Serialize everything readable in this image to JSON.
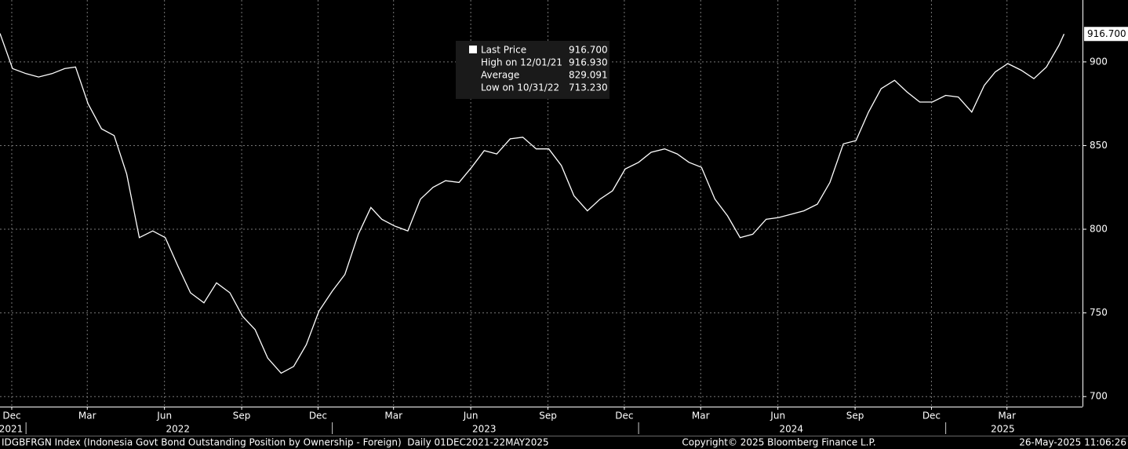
{
  "chart_data": {
    "type": "line",
    "series": [
      {
        "name": "Last Price",
        "color": "#ffffff",
        "x": [
          "2021-12-01",
          "2021-12-16",
          "2022-01-01",
          "2022-01-16",
          "2022-02-01",
          "2022-02-16",
          "2022-03-01",
          "2022-03-16",
          "2022-04-01",
          "2022-04-16",
          "2022-05-01",
          "2022-05-16",
          "2022-06-01",
          "2022-06-16",
          "2022-07-01",
          "2022-07-16",
          "2022-08-01",
          "2022-08-16",
          "2022-09-01",
          "2022-09-16",
          "2022-10-01",
          "2022-10-16",
          "2022-11-01",
          "2022-11-16",
          "2022-12-01",
          "2022-12-16",
          "2023-01-01",
          "2023-01-16",
          "2023-02-01",
          "2023-02-16",
          "2023-03-01",
          "2023-03-16",
          "2023-04-01",
          "2023-04-16",
          "2023-05-01",
          "2023-05-16",
          "2023-06-01",
          "2023-06-16",
          "2023-07-01",
          "2023-07-16",
          "2023-08-01",
          "2023-08-16",
          "2023-09-01",
          "2023-09-16",
          "2023-10-01",
          "2023-10-16",
          "2023-11-01",
          "2023-11-16",
          "2023-12-01",
          "2023-12-16",
          "2024-01-01",
          "2024-01-16",
          "2024-02-01",
          "2024-02-16",
          "2024-03-01",
          "2024-03-16",
          "2024-04-01",
          "2024-04-16",
          "2024-05-01",
          "2024-05-16",
          "2024-06-01",
          "2024-06-16",
          "2024-07-01",
          "2024-07-16",
          "2024-08-01",
          "2024-08-16",
          "2024-09-01",
          "2024-09-16",
          "2024-10-01",
          "2024-10-16",
          "2024-11-01",
          "2024-11-16",
          "2024-12-01",
          "2024-12-16",
          "2025-01-01",
          "2025-01-16",
          "2025-02-01",
          "2025-02-16",
          "2025-03-01",
          "2025-03-16",
          "2025-04-01",
          "2025-04-16",
          "2025-05-01",
          "2025-05-16",
          "2025-05-22"
        ],
        "values": [
          917,
          896,
          893,
          891,
          893,
          896,
          897,
          875,
          860,
          856,
          833,
          795,
          799,
          795,
          778,
          762,
          756,
          768,
          762,
          748,
          740,
          723,
          714,
          718,
          731,
          751,
          763,
          773,
          797,
          813,
          806,
          802,
          799,
          818,
          825,
          829,
          828,
          837,
          847,
          845,
          854,
          855,
          848,
          848,
          838,
          820,
          811,
          818,
          823,
          836,
          840,
          846,
          848,
          845,
          840,
          837,
          818,
          808,
          795,
          797,
          806,
          807,
          809,
          811,
          815,
          828,
          851,
          853,
          870,
          884,
          889,
          882,
          876,
          876,
          880,
          879,
          870,
          886,
          894,
          899,
          895,
          890,
          897,
          910,
          916.7
        ],
        "last_label": "916.700"
      }
    ],
    "legend": [
      {
        "label": "Last Price",
        "value": "916.700"
      },
      {
        "label": "High on 12/01/21",
        "value": "916.930"
      },
      {
        "label": "Average",
        "value": "829.091"
      },
      {
        "label": "Low on 10/31/22",
        "value": "713.230"
      }
    ],
    "xlim": [
      "2021-12-01",
      "2025-06-13"
    ],
    "xticks": [
      {
        "value": "2021-12-15",
        "label": "Dec"
      },
      {
        "value": "2022-03-15",
        "label": "Mar"
      },
      {
        "value": "2022-06-15",
        "label": "Jun"
      },
      {
        "value": "2022-09-15",
        "label": "Sep"
      },
      {
        "value": "2022-12-15",
        "label": "Dec"
      },
      {
        "value": "2023-03-15",
        "label": "Mar"
      },
      {
        "value": "2023-06-15",
        "label": "Jun"
      },
      {
        "value": "2023-09-15",
        "label": "Sep"
      },
      {
        "value": "2023-12-15",
        "label": "Dec"
      },
      {
        "value": "2024-03-15",
        "label": "Mar"
      },
      {
        "value": "2024-06-15",
        "label": "Jun"
      },
      {
        "value": "2024-09-15",
        "label": "Sep"
      },
      {
        "value": "2024-12-15",
        "label": "Dec"
      },
      {
        "value": "2025-03-15",
        "label": "Mar"
      }
    ],
    "year_ticks": [
      {
        "value": "2021-12-10",
        "label": "2021"
      },
      {
        "value": "2022-07-01",
        "label": "2022"
      },
      {
        "value": "2023-07-01",
        "label": "2023"
      },
      {
        "value": "2024-07-01",
        "label": "2024"
      },
      {
        "value": "2025-03-10",
        "label": "2025"
      }
    ],
    "year_breaks": [
      "2022-01-01",
      "2023-01-01",
      "2024-01-01",
      "2025-01-01"
    ],
    "ylim": [
      694,
      937
    ],
    "yticks": [
      700,
      750,
      800,
      850,
      900
    ],
    "grid": true,
    "footer": {
      "left": "IDGBFRGN Index (Indonesia Govt Bond Outstanding Position by Ownership - Foreign)  Daily 01DEC2021-22MAY2025",
      "center": "Copyright© 2025 Bloomberg Finance L.P.",
      "right": "26-May-2025 11:06:26"
    }
  }
}
